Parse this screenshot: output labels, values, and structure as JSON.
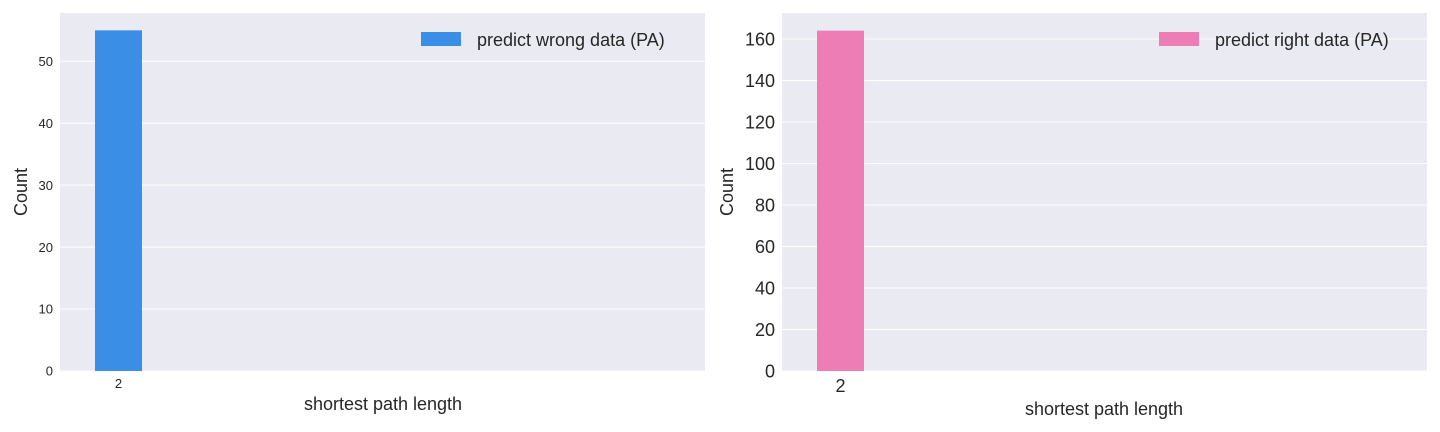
{
  "chart_data": [
    {
      "type": "bar",
      "categories": [
        "2"
      ],
      "series": [
        {
          "name": "predict wrong data (PA)",
          "values": [
            55
          ],
          "color": "#3a8ee6"
        }
      ],
      "title": "",
      "xlabel": "shortest path length",
      "ylabel": "Count",
      "ylim": [
        0,
        57.8
      ],
      "yticks": [
        0,
        10,
        20,
        30,
        40,
        50
      ],
      "grid": true,
      "legend": "top-right"
    },
    {
      "type": "bar",
      "categories": [
        "2"
      ],
      "series": [
        {
          "name": "predict right data (PA)",
          "values": [
            164
          ],
          "color": "#ed7db5"
        }
      ],
      "title": "",
      "xlabel": "shortest path length",
      "ylabel": "Count",
      "ylim": [
        0,
        172.5
      ],
      "yticks": [
        0,
        20,
        40,
        60,
        80,
        100,
        120,
        140,
        160
      ],
      "grid": true,
      "legend": "top-right"
    }
  ]
}
